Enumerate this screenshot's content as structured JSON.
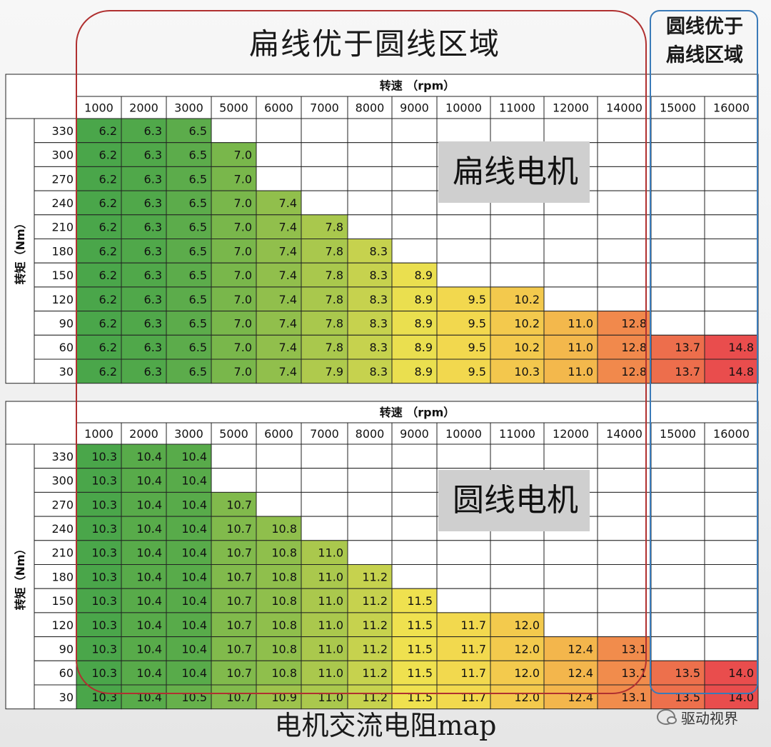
{
  "titles": {
    "top": "扁线优于圆线区域",
    "right_line1": "圆线优于",
    "right_line2": "扁线区域",
    "bottom": "电机交流电阻map"
  },
  "overlay_labels": {
    "flat": "扁线电机",
    "round": "圆线电机"
  },
  "watermark": "驱动视界",
  "colors": {
    "green": "#4aa64a",
    "yellow": "#f2e24f",
    "orange": "#f4a54b",
    "red": "#e94d4d",
    "frame_red": "#b03030",
    "frame_blue": "#3a7ab8"
  },
  "chart_data": [
    {
      "type": "heatmap",
      "label": "扁线电机",
      "xlabel": "转速 （rpm）",
      "ylabel": "转矩（Nm）",
      "x": [
        "1000",
        "2000",
        "3000",
        "5000",
        "6000",
        "7000",
        "8000",
        "9000",
        "10000",
        "11000",
        "12000",
        "14000",
        "15000",
        "16000"
      ],
      "y": [
        "330",
        "300",
        "270",
        "240",
        "210",
        "180",
        "150",
        "120",
        "90",
        "60",
        "30"
      ],
      "values": [
        [
          "6.2",
          "6.3",
          "6.5",
          "",
          "",
          "",
          "",
          "",
          "",
          "",
          "",
          "",
          "",
          ""
        ],
        [
          "6.2",
          "6.3",
          "6.5",
          "7.0",
          "",
          "",
          "",
          "",
          "",
          "",
          "",
          "",
          "",
          ""
        ],
        [
          "6.2",
          "6.3",
          "6.5",
          "7.0",
          "",
          "",
          "",
          "",
          "",
          "",
          "",
          "",
          "",
          ""
        ],
        [
          "6.2",
          "6.3",
          "6.5",
          "7.0",
          "7.4",
          "",
          "",
          "",
          "",
          "",
          "",
          "",
          "",
          ""
        ],
        [
          "6.2",
          "6.3",
          "6.5",
          "7.0",
          "7.4",
          "7.8",
          "",
          "",
          "",
          "",
          "",
          "",
          "",
          ""
        ],
        [
          "6.2",
          "6.3",
          "6.5",
          "7.0",
          "7.4",
          "7.8",
          "8.3",
          "",
          "",
          "",
          "",
          "",
          "",
          ""
        ],
        [
          "6.2",
          "6.3",
          "6.5",
          "7.0",
          "7.4",
          "7.8",
          "8.3",
          "8.9",
          "",
          "",
          "",
          "",
          "",
          ""
        ],
        [
          "6.2",
          "6.3",
          "6.5",
          "7.0",
          "7.4",
          "7.8",
          "8.3",
          "8.9",
          "9.5",
          "10.2",
          "",
          "",
          "",
          ""
        ],
        [
          "6.2",
          "6.3",
          "6.5",
          "7.0",
          "7.4",
          "7.8",
          "8.3",
          "8.9",
          "9.5",
          "10.2",
          "11.0",
          "12.8",
          "",
          ""
        ],
        [
          "6.2",
          "6.3",
          "6.5",
          "7.0",
          "7.4",
          "7.8",
          "8.3",
          "8.9",
          "9.5",
          "10.2",
          "11.0",
          "12.8",
          "13.7",
          "14.8"
        ],
        [
          "6.2",
          "6.3",
          "6.5",
          "7.0",
          "7.4",
          "7.9",
          "8.3",
          "8.9",
          "9.5",
          "10.3",
          "11.0",
          "12.8",
          "13.7",
          "14.8"
        ]
      ]
    },
    {
      "type": "heatmap",
      "label": "圆线电机",
      "xlabel": "转速 （rpm）",
      "ylabel": "转矩（Nm）",
      "x": [
        "1000",
        "2000",
        "3000",
        "5000",
        "6000",
        "7000",
        "8000",
        "9000",
        "10000",
        "11000",
        "12000",
        "14000",
        "15000",
        "16000"
      ],
      "y": [
        "330",
        "300",
        "270",
        "240",
        "210",
        "180",
        "150",
        "120",
        "90",
        "60",
        "30"
      ],
      "values": [
        [
          "10.3",
          "10.4",
          "10.4",
          "",
          "",
          "",
          "",
          "",
          "",
          "",
          "",
          "",
          "",
          ""
        ],
        [
          "10.3",
          "10.4",
          "10.4",
          "",
          "",
          "",
          "",
          "",
          "",
          "",
          "",
          "",
          "",
          ""
        ],
        [
          "10.3",
          "10.4",
          "10.4",
          "10.7",
          "",
          "",
          "",
          "",
          "",
          "",
          "",
          "",
          "",
          ""
        ],
        [
          "10.3",
          "10.4",
          "10.4",
          "10.7",
          "10.8",
          "",
          "",
          "",
          "",
          "",
          "",
          "",
          "",
          ""
        ],
        [
          "10.3",
          "10.4",
          "10.4",
          "10.7",
          "10.8",
          "11.0",
          "",
          "",
          "",
          "",
          "",
          "",
          "",
          ""
        ],
        [
          "10.3",
          "10.4",
          "10.4",
          "10.7",
          "10.8",
          "11.0",
          "11.2",
          "",
          "",
          "",
          "",
          "",
          "",
          ""
        ],
        [
          "10.3",
          "10.4",
          "10.4",
          "10.7",
          "10.8",
          "11.0",
          "11.2",
          "11.5",
          "",
          "",
          "",
          "",
          "",
          ""
        ],
        [
          "10.3",
          "10.4",
          "10.4",
          "10.7",
          "10.8",
          "11.0",
          "11.2",
          "11.5",
          "11.7",
          "12.0",
          "",
          "",
          "",
          ""
        ],
        [
          "10.3",
          "10.4",
          "10.4",
          "10.7",
          "10.8",
          "11.0",
          "11.2",
          "11.5",
          "11.7",
          "12.0",
          "12.4",
          "13.1",
          "",
          ""
        ],
        [
          "10.3",
          "10.4",
          "10.4",
          "10.7",
          "10.8",
          "11.0",
          "11.2",
          "11.5",
          "11.7",
          "12.0",
          "12.4",
          "13.1",
          "13.5",
          "14.0"
        ],
        [
          "10.3",
          "10.4",
          "10.5",
          "10.7",
          "10.9",
          "11.0",
          "11.2",
          "11.5",
          "11.7",
          "12.0",
          "12.4",
          "13.1",
          "13.5",
          "14.0"
        ]
      ]
    }
  ]
}
